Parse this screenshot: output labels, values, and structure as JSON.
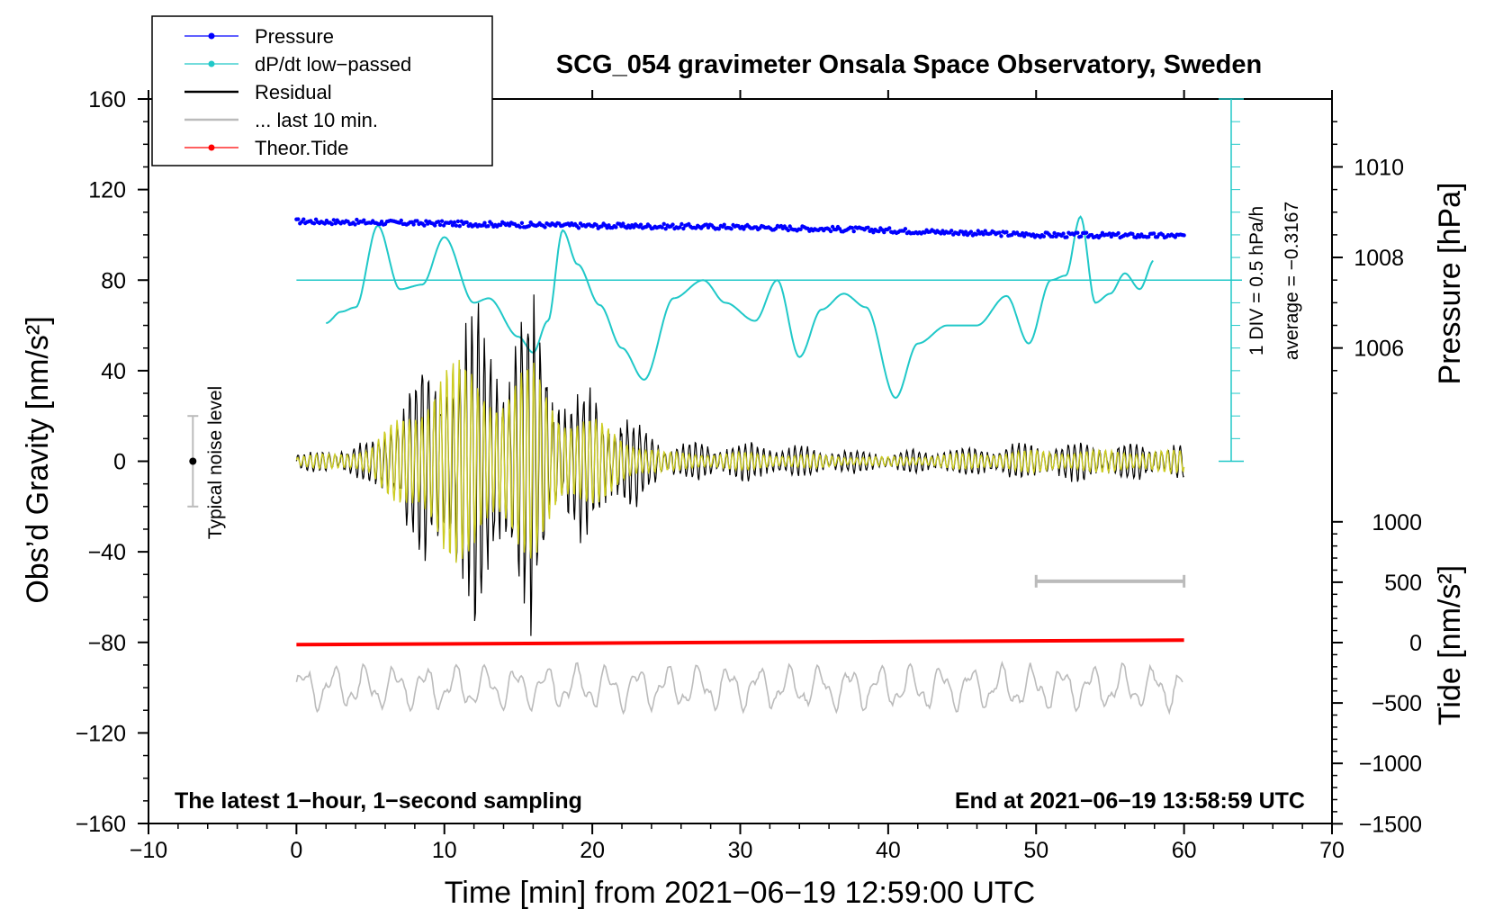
{
  "chart_data": {
    "type": "line",
    "title": "SCG_054 gravimeter Onsala Space Observatory, Sweden",
    "xlabel": "Time [min] from 2021−06−19 12:59:00 UTC",
    "ylabel_left": "Obs’d Gravity [nm/s²]",
    "ylabel_right_top": "Pressure [hPa]",
    "ylabel_right_bottom": "Tide [nm/s²]",
    "xlim": [
      -10,
      70
    ],
    "ylim": [
      -160,
      160
    ],
    "x_ticks": [
      "−10",
      "0",
      "10",
      "20",
      "30",
      "40",
      "50",
      "60",
      "70"
    ],
    "y_ticks": [
      "160",
      "120",
      "80",
      "40",
      "0",
      "−40",
      "−80",
      "−120",
      "−160"
    ],
    "pressure_ticks": [
      "1010",
      "1008",
      "1006"
    ],
    "tide_ticks": [
      "1000",
      "500",
      "0",
      "−500",
      "−1000",
      "−1500"
    ],
    "legend": {
      "position": "top-left",
      "entries": [
        {
          "label": "Pressure",
          "color": "#0000ff",
          "marker": "dot"
        },
        {
          "label": "dP/dt low−passed",
          "color": "#20c8c8",
          "marker": "dot"
        },
        {
          "label": "Residual",
          "color": "#000000",
          "marker": "line"
        },
        {
          "label": "... last 10 min.",
          "color": "#bbbbbb",
          "marker": "line"
        },
        {
          "label": "Theor.Tide",
          "color": "#ff0000",
          "marker": "dot"
        }
      ]
    },
    "annotations": {
      "bottom_left": "The latest 1−hour, 1−second sampling",
      "bottom_right": "End at 2021−06−19 13:58:59 UTC",
      "noise_label": "Typical noise level",
      "dpdt_scale": "1 DIV = 0.5 hPa/h",
      "dpdt_average": "average = −0.3167"
    },
    "noise_bar": {
      "x": -7,
      "y": 0,
      "ylow": -20,
      "yhigh": 20
    },
    "last10_bar": {
      "x1": 50,
      "x2": 60,
      "y": -53
    },
    "series": [
      {
        "name": "Pressure",
        "color": "#0000ff",
        "x": [
          0,
          10,
          20,
          30,
          40,
          50,
          60
        ],
        "values": [
          106,
          105,
          104,
          103.5,
          102,
          100,
          99.5
        ]
      },
      {
        "name": "dP/dt low−passed",
        "color": "#20c8c8",
        "baseline": 80,
        "x": [
          2,
          3,
          4,
          5.5,
          7,
          8.5,
          10,
          12,
          13,
          15,
          16,
          17,
          18,
          19,
          20.5,
          22,
          23.5,
          25.5,
          27.5,
          29,
          31,
          32.5,
          34,
          35.5,
          37,
          38.5,
          40.5,
          42,
          44,
          46,
          48,
          49.5,
          51,
          52,
          53,
          54,
          55,
          56,
          57,
          58
        ],
        "values": [
          61,
          66,
          68,
          104,
          76,
          78,
          99,
          70,
          72,
          55,
          48,
          62,
          102,
          87,
          69,
          50,
          36,
          72,
          80,
          70,
          62,
          80,
          46,
          67,
          74,
          68,
          28,
          52,
          60,
          60,
          73,
          52,
          80,
          82,
          108,
          70,
          74,
          83,
          76,
          89
        ]
      },
      {
        "name": "Residual",
        "color": "#000000",
        "x": [
          0,
          5,
          10,
          12,
          14,
          16,
          18,
          20,
          22,
          25,
          30,
          40,
          50,
          60
        ],
        "amplitude": [
          3,
          8,
          55,
          68,
          50,
          68,
          35,
          30,
          22,
          8,
          8,
          4,
          8,
          8
        ],
        "offset": 0
      },
      {
        "name": "Residual (filtered)",
        "color": "#cccc22",
        "x": [
          0,
          5,
          10,
          12,
          14,
          16,
          18,
          20,
          22,
          25,
          30,
          40,
          50,
          60
        ],
        "amplitude": [
          2,
          6,
          45,
          45,
          35,
          45,
          25,
          20,
          12,
          4,
          4,
          2,
          5,
          5
        ],
        "offset": 0
      },
      {
        "name": "Theor.Tide",
        "color": "#ff0000",
        "x": [
          0,
          30,
          60
        ],
        "values": [
          -81,
          -80,
          -79
        ]
      },
      {
        "name": "... last 10 min.",
        "color": "#bbbbbb",
        "x": [
          0,
          60
        ],
        "values": [
          -100,
          -100
        ],
        "amplitude": 10
      }
    ]
  }
}
